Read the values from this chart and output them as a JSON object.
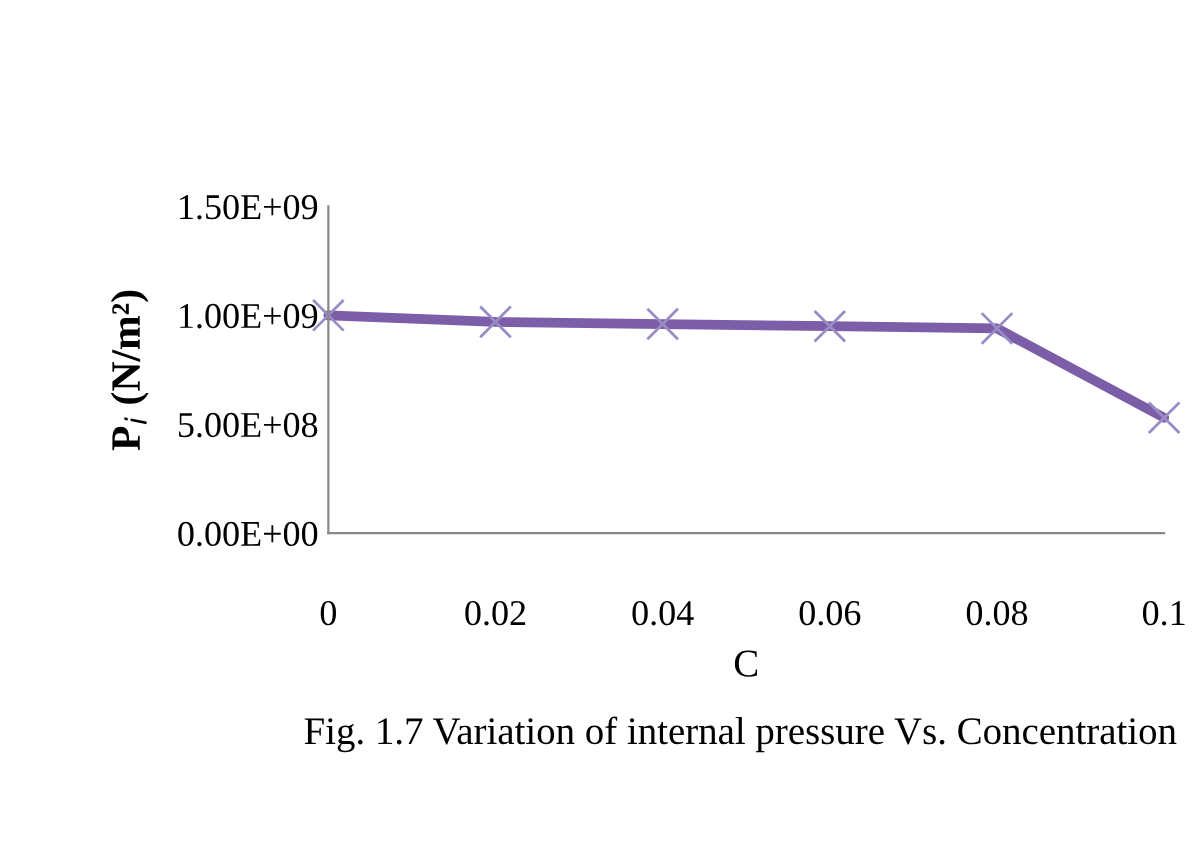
{
  "chart_data": {
    "type": "line",
    "xlabel": "C",
    "ylabel": "P$_{i}$ (N/m²)",
    "x": [
      0,
      0.02,
      0.04,
      0.06,
      0.08,
      0.1
    ],
    "series": [
      {
        "color": "#7b5ea7",
        "values": [
          1000000000.0,
          970000000.0,
          960000000.0,
          950000000.0,
          940000000.0,
          530000000.0
        ]
      }
    ],
    "xlim": [
      0,
      0.1
    ],
    "xticks": [
      0,
      0.02,
      0.04,
      0.06,
      0.08,
      0.1
    ],
    "ylim": [
      0,
      1500000000.0
    ],
    "yticks": [
      {
        "value": 0,
        "label": "0.00E+00"
      },
      {
        "value": 500000000.0,
        "label": "5.00E+08"
      },
      {
        "value": 1000000000.0,
        "label": "1.00E+09"
      },
      {
        "value": 1500000000.0,
        "label": "1.50E+09"
      }
    ],
    "marker": "cross",
    "line_style": "solid",
    "grid": false,
    "legend": false,
    "annotations": [
      "Fig. 1.7 Variation of internal pressure Vs. Concentration"
    ]
  }
}
